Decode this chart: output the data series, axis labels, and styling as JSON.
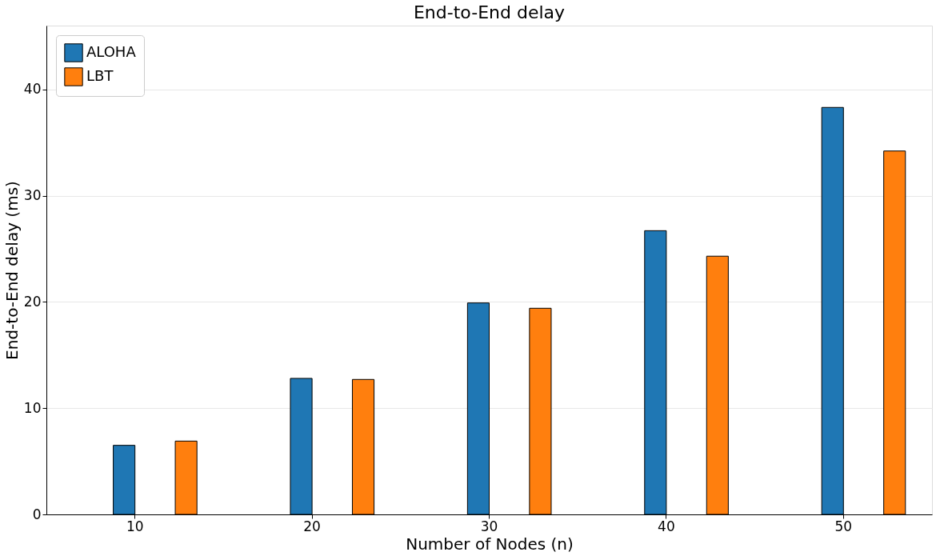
{
  "chart_data": {
    "type": "bar",
    "title": "End-to-End delay",
    "xlabel": "Number of Nodes (n)",
    "ylabel": "End-to-End delay (ms)",
    "categories": [
      "10",
      "20",
      "30",
      "40",
      "50"
    ],
    "series": [
      {
        "name": "ALOHA",
        "color": "#1f77b4",
        "values": [
          6.5,
          12.8,
          19.9,
          26.7,
          38.3
        ]
      },
      {
        "name": "LBT",
        "color": "#ff7f0e",
        "values": [
          6.9,
          12.7,
          19.4,
          24.3,
          34.2
        ]
      }
    ],
    "ylim": [
      0,
      46
    ],
    "yticks": [
      0,
      10,
      20,
      30,
      40
    ],
    "grid": "y",
    "legend": "top left"
  }
}
